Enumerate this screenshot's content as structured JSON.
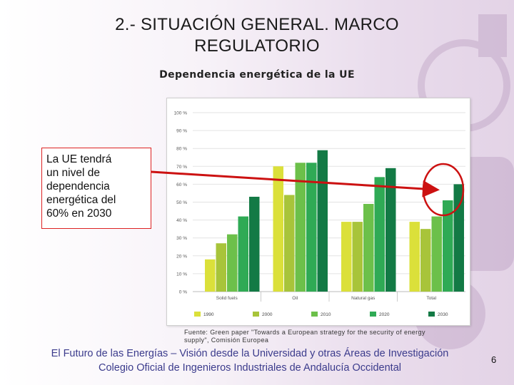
{
  "slide": {
    "title_line1": "2.- SITUACIÓN GENERAL. MARCO",
    "title_line2": "REGULATORIO",
    "subtitle": "Dependencia energética de la UE",
    "callout_lines": [
      "La UE tendrá",
      "un nivel de",
      "dependencia",
      "energética del",
      "60% en 2030"
    ],
    "source_line1": "Fuente: Green paper \"Towards a European strategy for the security of energy",
    "source_line2": "supply\", Comisión Europea",
    "footer_line1": "El Futuro de las Energías – Visión desde la Universidad y otras Áreas de Investigación",
    "footer_line2": "Colegio Oficial de Ingenieros Industriales de Andalucía Occidental",
    "page_number": "6",
    "callout_border_color": "#dd2222",
    "arrow_color": "#cc1111"
  },
  "chart_data": {
    "type": "bar",
    "categories": [
      "Solid fuels",
      "Oil",
      "Natural gas",
      "Total"
    ],
    "series": [
      {
        "name": "1990",
        "color": "#dbe03a",
        "values": [
          18,
          70,
          39,
          39
        ]
      },
      {
        "name": "2000",
        "color": "#a8c43a",
        "values": [
          27,
          54,
          39,
          35
        ]
      },
      {
        "name": "2010",
        "color": "#6cc04a",
        "values": [
          32,
          72,
          49,
          42
        ]
      },
      {
        "name": "2020",
        "color": "#2faa55",
        "values": [
          42,
          72,
          64,
          51
        ]
      },
      {
        "name": "2030",
        "color": "#137a45",
        "values": [
          53,
          79,
          69,
          60
        ]
      }
    ],
    "ylim": [
      0,
      100
    ],
    "yticks": [
      "0 %",
      "10 %",
      "20 %",
      "30 %",
      "40 %",
      "50 %",
      "60 %",
      "70 %",
      "80 %",
      "90 %",
      "100 %"
    ],
    "grid": true,
    "legend_position": "bottom"
  }
}
